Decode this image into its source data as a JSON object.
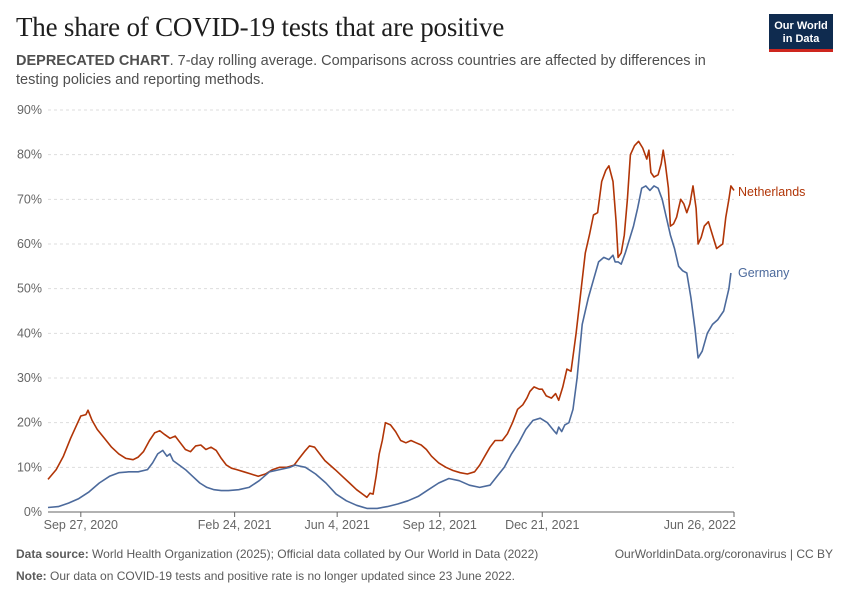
{
  "header": {
    "title": "The share of COVID-19 tests that are positive",
    "subtitle_lead": "DEPRECATED CHART",
    "subtitle_rest": ". 7-day rolling average. Comparisons across countries are affected by differences in testing policies and reporting methods."
  },
  "logo": {
    "line1": "Our World",
    "line2": "in Data"
  },
  "footer": {
    "source_label": "Data source:",
    "source_text": " World Health Organization (2025); Official data collated by Our World in Data (2022)",
    "note_label": "Note:",
    "note_text": " Our data on COVID-19 tests and positive rate is no longer updated since 23 June 2022.",
    "link_text": "OurWorldinData.org/coronavirus | CC BY"
  },
  "colors": {
    "netherlands": "#b13507",
    "germany": "#4c6a9c",
    "grid": "#dddddd",
    "axis": "#666666"
  },
  "chart_data": {
    "type": "line",
    "xlabel": "",
    "ylabel": "",
    "x_tick_labels": [
      "Sep 27, 2020",
      "Feb 24, 2021",
      "Jun 4, 2021",
      "Sep 12, 2021",
      "Dec 21, 2021",
      "Jun 26, 2022"
    ],
    "x_tick_dates": [
      "2020-09-27",
      "2021-02-24",
      "2021-06-04",
      "2021-09-12",
      "2021-12-21",
      "2022-06-26"
    ],
    "x_range": [
      "2020-08-26",
      "2022-06-26"
    ],
    "y_tick_labels": [
      "0%",
      "10%",
      "20%",
      "30%",
      "40%",
      "50%",
      "60%",
      "70%",
      "80%",
      "90%"
    ],
    "y_ticks": [
      0,
      10,
      20,
      30,
      40,
      50,
      60,
      70,
      80,
      90
    ],
    "ylim": [
      0,
      90
    ],
    "grid": "horizontal dashed",
    "legend": "line-end labels",
    "series": [
      {
        "name": "Netherlands",
        "points": [
          [
            "2020-08-26",
            7.3
          ],
          [
            "2020-09-03",
            9.5
          ],
          [
            "2020-09-10",
            12.5
          ],
          [
            "2020-09-17",
            16.5
          ],
          [
            "2020-09-24",
            20.0
          ],
          [
            "2020-09-27",
            21.5
          ],
          [
            "2020-10-02",
            21.8
          ],
          [
            "2020-10-04",
            22.8
          ],
          [
            "2020-10-08",
            20.5
          ],
          [
            "2020-10-13",
            18.5
          ],
          [
            "2020-10-20",
            16.5
          ],
          [
            "2020-10-27",
            14.5
          ],
          [
            "2020-11-03",
            13.0
          ],
          [
            "2020-11-10",
            12.0
          ],
          [
            "2020-11-17",
            11.7
          ],
          [
            "2020-11-22",
            12.3
          ],
          [
            "2020-11-27",
            13.5
          ],
          [
            "2020-12-03",
            16.0
          ],
          [
            "2020-12-08",
            17.7
          ],
          [
            "2020-12-13",
            18.2
          ],
          [
            "2020-12-18",
            17.3
          ],
          [
            "2020-12-23",
            16.5
          ],
          [
            "2020-12-28",
            17.0
          ],
          [
            "2021-01-02",
            15.5
          ],
          [
            "2021-01-07",
            14.0
          ],
          [
            "2021-01-12",
            13.5
          ],
          [
            "2021-01-17",
            14.8
          ],
          [
            "2021-01-22",
            15.0
          ],
          [
            "2021-01-27",
            14.0
          ],
          [
            "2021-02-01",
            14.5
          ],
          [
            "2021-02-06",
            13.8
          ],
          [
            "2021-02-11",
            12.0
          ],
          [
            "2021-02-16",
            10.5
          ],
          [
            "2021-02-21",
            9.8
          ],
          [
            "2021-02-26",
            9.5
          ],
          [
            "2021-03-05",
            9.0
          ],
          [
            "2021-03-12",
            8.5
          ],
          [
            "2021-03-19",
            8.0
          ],
          [
            "2021-03-26",
            8.5
          ],
          [
            "2021-04-02",
            9.5
          ],
          [
            "2021-04-09",
            10.0
          ],
          [
            "2021-04-16",
            10.0
          ],
          [
            "2021-04-23",
            10.5
          ],
          [
            "2021-04-28",
            12.0
          ],
          [
            "2021-05-03",
            13.5
          ],
          [
            "2021-05-08",
            14.8
          ],
          [
            "2021-05-13",
            14.5
          ],
          [
            "2021-05-18",
            13.0
          ],
          [
            "2021-05-23",
            11.5
          ],
          [
            "2021-05-28",
            10.5
          ],
          [
            "2021-06-02",
            9.5
          ],
          [
            "2021-06-09",
            8.0
          ],
          [
            "2021-06-16",
            6.5
          ],
          [
            "2021-06-23",
            5.0
          ],
          [
            "2021-06-30",
            3.8
          ],
          [
            "2021-07-03",
            3.3
          ],
          [
            "2021-07-06",
            4.2
          ],
          [
            "2021-07-09",
            4.0
          ],
          [
            "2021-07-12",
            8.0
          ],
          [
            "2021-07-15",
            13.0
          ],
          [
            "2021-07-18",
            16.0
          ],
          [
            "2021-07-21",
            20.0
          ],
          [
            "2021-07-26",
            19.5
          ],
          [
            "2021-07-31",
            18.0
          ],
          [
            "2021-08-05",
            16.0
          ],
          [
            "2021-08-10",
            15.5
          ],
          [
            "2021-08-15",
            16.0
          ],
          [
            "2021-08-20",
            15.5
          ],
          [
            "2021-08-25",
            15.0
          ],
          [
            "2021-08-30",
            14.0
          ],
          [
            "2021-09-04",
            12.5
          ],
          [
            "2021-09-11",
            11.0
          ],
          [
            "2021-09-18",
            10.0
          ],
          [
            "2021-09-25",
            9.3
          ],
          [
            "2021-10-02",
            8.8
          ],
          [
            "2021-10-09",
            8.5
          ],
          [
            "2021-10-16",
            9.0
          ],
          [
            "2021-10-21",
            10.5
          ],
          [
            "2021-10-26",
            12.5
          ],
          [
            "2021-10-31",
            14.5
          ],
          [
            "2021-11-05",
            16.0
          ],
          [
            "2021-11-12",
            16.0
          ],
          [
            "2021-11-17",
            17.5
          ],
          [
            "2021-11-22",
            20.0
          ],
          [
            "2021-11-27",
            23.0
          ],
          [
            "2021-12-02",
            24.0
          ],
          [
            "2021-12-06",
            25.5
          ],
          [
            "2021-12-09",
            27.0
          ],
          [
            "2021-12-13",
            28.0
          ],
          [
            "2021-12-18",
            27.5
          ],
          [
            "2021-12-21",
            27.5
          ],
          [
            "2021-12-25",
            26.0
          ],
          [
            "2021-12-30",
            25.5
          ],
          [
            "2022-01-03",
            26.5
          ],
          [
            "2022-01-06",
            25.0
          ],
          [
            "2022-01-10",
            28.0
          ],
          [
            "2022-01-14",
            32.0
          ],
          [
            "2022-01-18",
            31.5
          ],
          [
            "2022-01-23",
            40.0
          ],
          [
            "2022-01-28",
            50.0
          ],
          [
            "2022-02-01",
            58.0
          ],
          [
            "2022-02-05",
            62.0
          ],
          [
            "2022-02-09",
            66.5
          ],
          [
            "2022-02-13",
            67.0
          ],
          [
            "2022-02-17",
            74.0
          ],
          [
            "2022-02-21",
            76.5
          ],
          [
            "2022-02-24",
            77.5
          ],
          [
            "2022-02-28",
            74.0
          ],
          [
            "2022-03-03",
            65.0
          ],
          [
            "2022-03-05",
            57.0
          ],
          [
            "2022-03-08",
            58.0
          ],
          [
            "2022-03-11",
            62.0
          ],
          [
            "2022-03-14",
            70.0
          ],
          [
            "2022-03-17",
            80.0
          ],
          [
            "2022-03-21",
            82.0
          ],
          [
            "2022-03-25",
            83.0
          ],
          [
            "2022-03-29",
            81.5
          ],
          [
            "2022-04-02",
            79.0
          ],
          [
            "2022-04-04",
            81.0
          ],
          [
            "2022-04-06",
            76.0
          ],
          [
            "2022-04-09",
            75.0
          ],
          [
            "2022-04-13",
            75.5
          ],
          [
            "2022-04-16",
            78.0
          ],
          [
            "2022-04-18",
            81.0
          ],
          [
            "2022-04-20",
            78.0
          ],
          [
            "2022-04-23",
            72.5
          ],
          [
            "2022-04-25",
            64.0
          ],
          [
            "2022-04-28",
            64.5
          ],
          [
            "2022-05-01",
            66.0
          ],
          [
            "2022-05-03",
            68.0
          ],
          [
            "2022-05-05",
            70.0
          ],
          [
            "2022-05-08",
            69.0
          ],
          [
            "2022-05-11",
            67.0
          ],
          [
            "2022-05-14",
            69.0
          ],
          [
            "2022-05-17",
            73.0
          ],
          [
            "2022-05-20",
            68.0
          ],
          [
            "2022-05-22",
            60.0
          ],
          [
            "2022-05-25",
            61.5
          ],
          [
            "2022-05-28",
            64.0
          ],
          [
            "2022-06-01",
            65.0
          ],
          [
            "2022-06-05",
            62.0
          ],
          [
            "2022-06-09",
            59.0
          ],
          [
            "2022-06-12",
            59.5
          ],
          [
            "2022-06-15",
            60.0
          ],
          [
            "2022-06-18",
            66.0
          ],
          [
            "2022-06-21",
            70.0
          ],
          [
            "2022-06-23",
            73.0
          ],
          [
            "2022-06-26",
            72.0
          ]
        ]
      },
      {
        "name": "Germany",
        "points": [
          [
            "2020-08-26",
            1.0
          ],
          [
            "2020-09-05",
            1.2
          ],
          [
            "2020-09-15",
            2.0
          ],
          [
            "2020-09-25",
            3.0
          ],
          [
            "2020-10-05",
            4.5
          ],
          [
            "2020-10-15",
            6.5
          ],
          [
            "2020-10-25",
            8.0
          ],
          [
            "2020-11-03",
            8.8
          ],
          [
            "2020-11-13",
            9.0
          ],
          [
            "2020-11-22",
            9.0
          ],
          [
            "2020-12-01",
            9.5
          ],
          [
            "2020-12-06",
            11.0
          ],
          [
            "2020-12-11",
            13.0
          ],
          [
            "2020-12-16",
            13.8
          ],
          [
            "2020-12-20",
            12.5
          ],
          [
            "2020-12-23",
            13.0
          ],
          [
            "2020-12-26",
            11.5
          ],
          [
            "2021-01-01",
            10.5
          ],
          [
            "2021-01-07",
            9.5
          ],
          [
            "2021-01-14",
            8.0
          ],
          [
            "2021-01-21",
            6.5
          ],
          [
            "2021-01-28",
            5.5
          ],
          [
            "2021-02-04",
            5.0
          ],
          [
            "2021-02-11",
            4.8
          ],
          [
            "2021-02-18",
            4.8
          ],
          [
            "2021-02-28",
            5.0
          ],
          [
            "2021-03-10",
            5.5
          ],
          [
            "2021-03-20",
            7.0
          ],
          [
            "2021-03-30",
            9.0
          ],
          [
            "2021-04-09",
            9.5
          ],
          [
            "2021-04-19",
            10.0
          ],
          [
            "2021-04-24",
            10.5
          ],
          [
            "2021-05-04",
            10.0
          ],
          [
            "2021-05-14",
            8.5
          ],
          [
            "2021-05-24",
            6.5
          ],
          [
            "2021-06-03",
            4.0
          ],
          [
            "2021-06-13",
            2.5
          ],
          [
            "2021-06-23",
            1.5
          ],
          [
            "2021-07-03",
            0.8
          ],
          [
            "2021-07-13",
            0.8
          ],
          [
            "2021-07-23",
            1.2
          ],
          [
            "2021-08-02",
            1.8
          ],
          [
            "2021-08-12",
            2.5
          ],
          [
            "2021-08-22",
            3.5
          ],
          [
            "2021-09-01",
            5.0
          ],
          [
            "2021-09-11",
            6.5
          ],
          [
            "2021-09-21",
            7.5
          ],
          [
            "2021-10-01",
            7.0
          ],
          [
            "2021-10-11",
            6.0
          ],
          [
            "2021-10-21",
            5.5
          ],
          [
            "2021-10-31",
            6.0
          ],
          [
            "2021-11-07",
            8.0
          ],
          [
            "2021-11-14",
            10.0
          ],
          [
            "2021-11-21",
            13.0
          ],
          [
            "2021-11-28",
            15.5
          ],
          [
            "2021-12-05",
            18.5
          ],
          [
            "2021-12-12",
            20.5
          ],
          [
            "2021-12-19",
            21.0
          ],
          [
            "2021-12-26",
            20.0
          ],
          [
            "2022-01-02",
            18.0
          ],
          [
            "2022-01-04",
            17.5
          ],
          [
            "2022-01-06",
            19.0
          ],
          [
            "2022-01-09",
            18.0
          ],
          [
            "2022-01-12",
            19.5
          ],
          [
            "2022-01-16",
            20.0
          ],
          [
            "2022-01-20",
            23.0
          ],
          [
            "2022-01-24",
            30.0
          ],
          [
            "2022-01-29",
            42.0
          ],
          [
            "2022-02-04",
            48.0
          ],
          [
            "2022-02-09",
            52.0
          ],
          [
            "2022-02-14",
            56.0
          ],
          [
            "2022-02-19",
            57.0
          ],
          [
            "2022-02-24",
            56.5
          ],
          [
            "2022-02-28",
            57.5
          ],
          [
            "2022-03-02",
            56.0
          ],
          [
            "2022-03-05",
            56.0
          ],
          [
            "2022-03-08",
            55.5
          ],
          [
            "2022-03-12",
            58.0
          ],
          [
            "2022-03-16",
            61.0
          ],
          [
            "2022-03-20",
            64.0
          ],
          [
            "2022-03-24",
            68.0
          ],
          [
            "2022-03-28",
            72.5
          ],
          [
            "2022-04-01",
            73.0
          ],
          [
            "2022-04-05",
            72.0
          ],
          [
            "2022-04-09",
            73.0
          ],
          [
            "2022-04-13",
            72.5
          ],
          [
            "2022-04-17",
            70.0
          ],
          [
            "2022-04-21",
            66.0
          ],
          [
            "2022-04-25",
            62.0
          ],
          [
            "2022-04-29",
            59.0
          ],
          [
            "2022-05-03",
            55.0
          ],
          [
            "2022-05-07",
            54.0
          ],
          [
            "2022-05-11",
            53.5
          ],
          [
            "2022-05-15",
            48.0
          ],
          [
            "2022-05-19",
            41.0
          ],
          [
            "2022-05-22",
            34.5
          ],
          [
            "2022-05-26",
            36.0
          ],
          [
            "2022-05-31",
            40.0
          ],
          [
            "2022-06-05",
            42.0
          ],
          [
            "2022-06-10",
            43.0
          ],
          [
            "2022-06-16",
            45.0
          ],
          [
            "2022-06-21",
            50.0
          ],
          [
            "2022-06-23",
            53.5
          ]
        ]
      }
    ]
  }
}
